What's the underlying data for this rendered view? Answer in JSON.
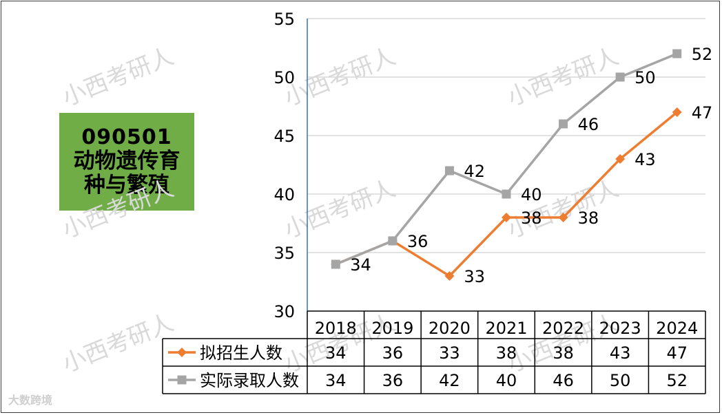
{
  "label_box": {
    "code": "090501",
    "name_line1": "动物遗传育",
    "name_line2": "种与繁殖"
  },
  "watermark": "小西考研人",
  "brand_mark": "大数跨境",
  "colors": {
    "enrollment_plan": "#ed7d31",
    "actual_admitted": "#a5a5a5",
    "label_box": "#70ad47",
    "gridline": "#d9d9d9",
    "axis": "#2e75b6"
  },
  "chart_data": {
    "type": "line",
    "x": [
      "2018",
      "2019",
      "2020",
      "2021",
      "2022",
      "2023",
      "2024"
    ],
    "ylim": [
      30,
      55
    ],
    "yticks": [
      30,
      35,
      40,
      45,
      50,
      55
    ],
    "grid": true,
    "legend_placement": "data-table-left",
    "series": [
      {
        "name": "拟招生人数",
        "color": "#ed7d31",
        "marker": "diamond",
        "values": [
          34,
          36,
          33,
          38,
          38,
          43,
          47
        ],
        "data_labels": [
          false,
          false,
          true,
          true,
          true,
          true,
          true
        ]
      },
      {
        "name": "实际录取人数",
        "color": "#a5a5a5",
        "marker": "square",
        "values": [
          34,
          36,
          42,
          40,
          46,
          50,
          52
        ],
        "data_labels": [
          true,
          true,
          true,
          true,
          true,
          true,
          true
        ]
      }
    ]
  }
}
